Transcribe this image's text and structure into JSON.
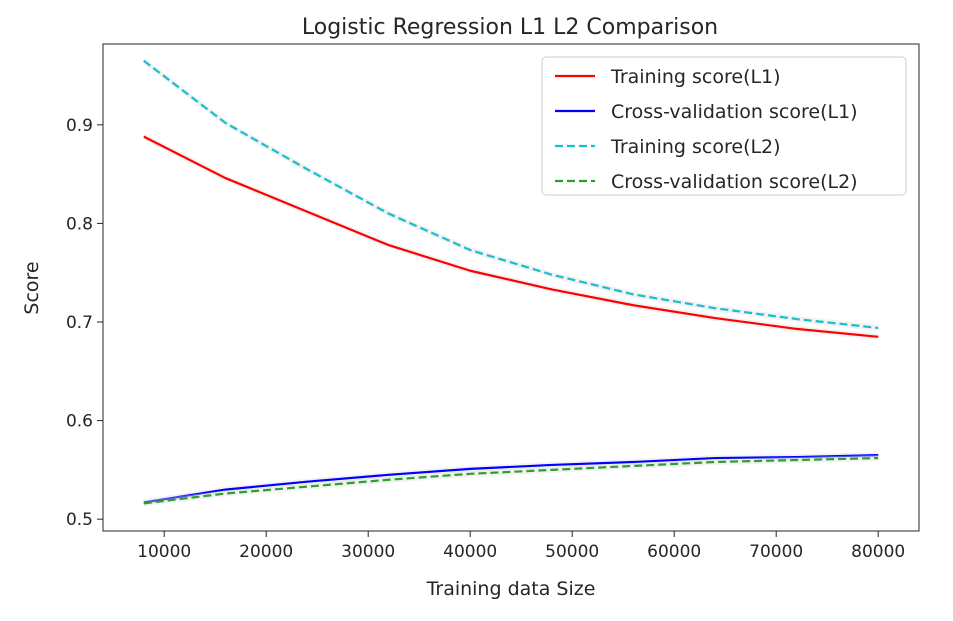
{
  "chart_data": {
    "type": "line",
    "title": "Logistic Regression L1 L2 Comparison",
    "xlabel": "Training data Size",
    "ylabel": "Score",
    "xlim": [
      4000,
      84000
    ],
    "ylim": [
      0.488,
      0.982
    ],
    "xticks": [
      10000,
      20000,
      30000,
      40000,
      50000,
      60000,
      70000,
      80000
    ],
    "xtick_labels": [
      "10000",
      "20000",
      "30000",
      "40000",
      "50000",
      "60000",
      "70000",
      "80000"
    ],
    "yticks": [
      0.5,
      0.6,
      0.7,
      0.8,
      0.9
    ],
    "ytick_labels": [
      "0.5",
      "0.6",
      "0.7",
      "0.8",
      "0.9"
    ],
    "grid": false,
    "legend_position": "top-right",
    "x": [
      8000,
      16000,
      24000,
      32000,
      40000,
      48000,
      56000,
      64000,
      72000,
      80000
    ],
    "series": [
      {
        "name": "Training score(L1)",
        "color": "#ff0000",
        "dash": "solid",
        "values": [
          0.888,
          0.846,
          0.812,
          0.778,
          0.752,
          0.733,
          0.717,
          0.704,
          0.693,
          0.685
        ]
      },
      {
        "name": "Cross-validation score(L1)",
        "color": "#0000ff",
        "dash": "solid",
        "values": [
          0.517,
          0.53,
          0.538,
          0.545,
          0.551,
          0.555,
          0.558,
          0.562,
          0.563,
          0.565
        ]
      },
      {
        "name": "Training score(L2)",
        "color": "#17becf",
        "dash": "dashed",
        "values": [
          0.965,
          0.902,
          0.855,
          0.81,
          0.773,
          0.748,
          0.728,
          0.714,
          0.703,
          0.694
        ]
      },
      {
        "name": "Cross-validation score(L2)",
        "color": "#2ca02c",
        "dash": "dashed",
        "values": [
          0.516,
          0.526,
          0.533,
          0.54,
          0.546,
          0.55,
          0.554,
          0.558,
          0.56,
          0.562
        ]
      }
    ]
  }
}
